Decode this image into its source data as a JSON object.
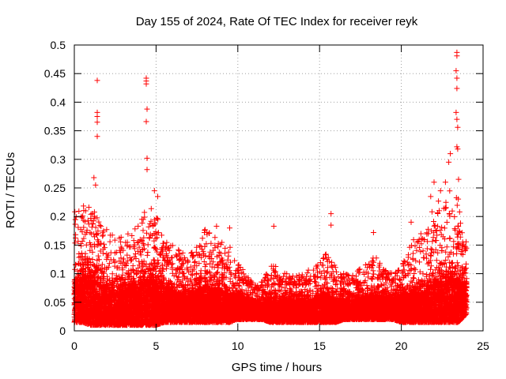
{
  "chart_data": {
    "type": "scatter",
    "title": "Day 155 of 2024, Rate Of TEC Index for receiver reyk",
    "xlabel": "GPS time / hours",
    "ylabel": "ROTI / TECUs",
    "xlim": [
      0,
      25
    ],
    "ylim": [
      0,
      0.5
    ],
    "xticks": [
      0,
      5,
      10,
      15,
      20,
      25
    ],
    "yticks": [
      0,
      0.05,
      0.1,
      0.15,
      0.2,
      0.25,
      0.3,
      0.35,
      0.4,
      0.45,
      0.5
    ],
    "xtick_labels": [
      "0",
      "5",
      "10",
      "15",
      "20",
      "25"
    ],
    "ytick_labels": [
      "0",
      "0.05",
      "0.1",
      "0.15",
      "0.2",
      "0.25",
      "0.3",
      "0.35",
      "0.4",
      "0.45",
      "0.5"
    ],
    "grid": true,
    "marker": "+",
    "marker_color": "#ff0000",
    "series": [
      {
        "name": "ROTI",
        "notable_points": [
          {
            "x": 1.4,
            "y": 0.438
          },
          {
            "x": 1.4,
            "y": 0.382
          },
          {
            "x": 1.4,
            "y": 0.375
          },
          {
            "x": 1.4,
            "y": 0.365
          },
          {
            "x": 1.4,
            "y": 0.34
          },
          {
            "x": 1.2,
            "y": 0.268
          },
          {
            "x": 1.3,
            "y": 0.255
          },
          {
            "x": 4.4,
            "y": 0.442
          },
          {
            "x": 4.4,
            "y": 0.437
          },
          {
            "x": 4.4,
            "y": 0.432
          },
          {
            "x": 4.45,
            "y": 0.388
          },
          {
            "x": 4.4,
            "y": 0.366
          },
          {
            "x": 4.45,
            "y": 0.302
          },
          {
            "x": 4.45,
            "y": 0.282
          },
          {
            "x": 4.9,
            "y": 0.245
          },
          {
            "x": 5.1,
            "y": 0.235
          },
          {
            "x": 15.7,
            "y": 0.205
          },
          {
            "x": 15.7,
            "y": 0.185
          },
          {
            "x": 12.2,
            "y": 0.183
          },
          {
            "x": 18.3,
            "y": 0.172
          },
          {
            "x": 8.7,
            "y": 0.183
          },
          {
            "x": 9.5,
            "y": 0.18
          },
          {
            "x": 23.4,
            "y": 0.487
          },
          {
            "x": 23.4,
            "y": 0.481
          },
          {
            "x": 23.35,
            "y": 0.455
          },
          {
            "x": 23.4,
            "y": 0.442
          },
          {
            "x": 23.4,
            "y": 0.424
          },
          {
            "x": 23.35,
            "y": 0.382
          },
          {
            "x": 23.4,
            "y": 0.37
          },
          {
            "x": 23.45,
            "y": 0.356
          },
          {
            "x": 23.4,
            "y": 0.322
          },
          {
            "x": 23.45,
            "y": 0.318
          },
          {
            "x": 23.0,
            "y": 0.31
          },
          {
            "x": 22.9,
            "y": 0.295
          },
          {
            "x": 23.5,
            "y": 0.265
          },
          {
            "x": 22.7,
            "y": 0.26
          },
          {
            "x": 22.4,
            "y": 0.245
          },
          {
            "x": 22.0,
            "y": 0.26
          },
          {
            "x": 21.8,
            "y": 0.235
          },
          {
            "x": 20.6,
            "y": 0.19
          }
        ],
        "envelope": {
          "hours": [
            0,
            0.5,
            1,
            1.5,
            2,
            2.5,
            3,
            3.5,
            4,
            4.5,
            5,
            5.5,
            6,
            6.5,
            7,
            7.5,
            8,
            8.5,
            9,
            9.5,
            10,
            10.5,
            11,
            11.5,
            12,
            12.5,
            13,
            13.5,
            14,
            14.5,
            15,
            15.5,
            16,
            16.5,
            17,
            17.5,
            18,
            18.5,
            19,
            19.5,
            20,
            20.5,
            21,
            21.5,
            22,
            22.5,
            23,
            23.5,
            24
          ],
          "dense_top": [
            0.14,
            0.15,
            0.15,
            0.14,
            0.12,
            0.11,
            0.11,
            0.12,
            0.13,
            0.15,
            0.14,
            0.12,
            0.11,
            0.1,
            0.1,
            0.11,
            0.12,
            0.11,
            0.11,
            0.1,
            0.09,
            0.08,
            0.07,
            0.07,
            0.08,
            0.08,
            0.08,
            0.08,
            0.08,
            0.08,
            0.09,
            0.09,
            0.08,
            0.08,
            0.08,
            0.08,
            0.09,
            0.09,
            0.09,
            0.08,
            0.09,
            0.1,
            0.1,
            0.11,
            0.13,
            0.14,
            0.15,
            0.14,
            0.12
          ],
          "sparse_top": [
            0.21,
            0.22,
            0.22,
            0.2,
            0.18,
            0.17,
            0.17,
            0.18,
            0.19,
            0.22,
            0.21,
            0.16,
            0.15,
            0.14,
            0.13,
            0.15,
            0.18,
            0.17,
            0.16,
            0.15,
            0.12,
            0.1,
            0.08,
            0.09,
            0.12,
            0.11,
            0.1,
            0.1,
            0.1,
            0.11,
            0.13,
            0.14,
            0.11,
            0.1,
            0.1,
            0.11,
            0.13,
            0.13,
            0.11,
            0.1,
            0.11,
            0.15,
            0.17,
            0.18,
            0.22,
            0.24,
            0.25,
            0.23,
            0.15
          ],
          "bottom": [
            0.015,
            0.015,
            0.01,
            0.01,
            0.01,
            0.01,
            0.01,
            0.01,
            0.01,
            0.01,
            0.01,
            0.015,
            0.015,
            0.015,
            0.015,
            0.015,
            0.015,
            0.015,
            0.015,
            0.015,
            0.02,
            0.02,
            0.02,
            0.02,
            0.015,
            0.015,
            0.015,
            0.015,
            0.015,
            0.015,
            0.015,
            0.015,
            0.015,
            0.02,
            0.02,
            0.02,
            0.02,
            0.02,
            0.02,
            0.02,
            0.015,
            0.015,
            0.015,
            0.015,
            0.015,
            0.015,
            0.015,
            0.015,
            0.03
          ]
        }
      }
    ]
  }
}
